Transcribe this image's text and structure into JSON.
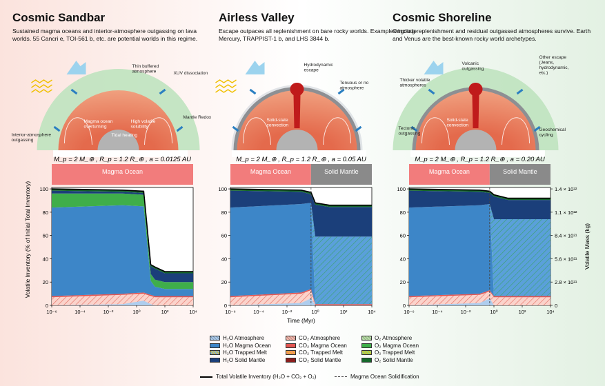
{
  "panels": [
    {
      "title": "Cosmic Sandbar",
      "description": "Sustained magma oceans and interior-atmosphere outgassing on lava worlds. 55 Cancri e, TOI-561 b, etc. are potential worlds in this regime.",
      "params": "M_p = 2 M_⊕ , R_p = 1.2 R_⊕ , a = 0.0125 AU",
      "band_left": "Magma Ocean",
      "band_right": "",
      "labels": [
        "Thin buffered atmosphere",
        "XUV dissociation",
        "Mantle Redox",
        "Interior-atmosphere outgassing",
        "Magma ocean overturning",
        "High volatile solubility",
        "Tidal heating"
      ]
    },
    {
      "title": "Airless Valley",
      "description": "Escape outpaces all replenishment on bare rocky worlds. Examples include Mercury, TRAPPIST-1 b, and LHS 3844 b.",
      "params": "M_p = 2 M_⊕ , R_p = 1.2 R_⊕ , a = 0.05 AU",
      "band_left": "Magma Ocean",
      "band_right": "Solid Mantle",
      "labels": [
        "Hydrodynamic escape",
        "Tenuous or no atmosphere",
        "Solid-state convection"
      ]
    },
    {
      "title": "Cosmic Shoreline",
      "description": "Ongoing replenishment and residual outgassed atmospheres survive. Earth and Venus are the best-known rocky world archetypes.",
      "params": "M_p = 2 M_⊕ , R_p = 1.2 R_⊕ , a = 0.20 AU",
      "band_left": "Magma Ocean",
      "band_right": "Solid Mantle",
      "labels": [
        "Volcanic outgassing",
        "Other escape (Jeans, hydrodynamic, etc.)",
        "Thicker volatile atmospheres",
        "Solid-state convection",
        "Tectonic outgassing",
        "Geochemical cycling"
      ]
    }
  ],
  "axes": {
    "ylabel_left": "Volatile Inventory (% of Initial Total Inventory)",
    "ylabel_right": "Volatile Mass (kg)",
    "xlabel": "Time (Myr)",
    "yticks": [
      "0",
      "20",
      "40",
      "60",
      "80",
      "100"
    ],
    "xticks": [
      "10⁻⁶",
      "10⁻⁴",
      "10⁻²",
      "10⁰",
      "10²",
      "10⁴"
    ],
    "right_ticks": [
      "0",
      "2.8 × 10²¹",
      "5.6 × 10²¹",
      "8.4 × 10²¹",
      "1.1 × 10²²",
      "1.4 × 10²²"
    ]
  },
  "chart_data": [
    {
      "type": "area",
      "x_log10": [
        -6,
        -1,
        0.5,
        1,
        1.3,
        2,
        4
      ],
      "series": [
        {
          "name": "H₂O Atmosphere",
          "values": [
            0,
            1,
            4,
            1,
            0,
            0,
            0
          ]
        },
        {
          "name": "H₂O Magma Ocean",
          "values": [
            76,
            76,
            74,
            12,
            8,
            6,
            6
          ]
        },
        {
          "name": "CO₂ Atmosphere",
          "values": [
            7,
            9,
            10,
            8,
            7,
            7,
            7
          ]
        },
        {
          "name": "O₂ Magma Ocean",
          "values": [
            12,
            11,
            10,
            6,
            6,
            6,
            6
          ]
        },
        {
          "name": "Total Volatile Inventory (H₂O + CO₂ + O₂)",
          "values": [
            100,
            99,
            98,
            35,
            33,
            29,
            29
          ]
        }
      ]
    },
    {
      "type": "area",
      "x_log10": [
        -6,
        -1,
        -0.3,
        0,
        1,
        4
      ],
      "series": [
        {
          "name": "H₂O Atmosphere",
          "values": [
            0,
            2,
            6,
            0,
            0,
            0
          ]
        },
        {
          "name": "H₂O Magma Ocean",
          "values": [
            76,
            76,
            74,
            0,
            0,
            0
          ]
        },
        {
          "name": "H₂O Solid Mantle",
          "values": [
            0,
            0,
            0,
            58,
            58,
            58
          ]
        },
        {
          "name": "CO₂ Atmosphere",
          "values": [
            7,
            10,
            13,
            0,
            0,
            0
          ]
        },
        {
          "name": "Total Volatile Inventory (H₂O + CO₂ + O₂)",
          "values": [
            100,
            99,
            97,
            88,
            86,
            86
          ]
        }
      ]
    },
    {
      "type": "area",
      "x_log10": [
        -6,
        -1,
        -0.3,
        0,
        1,
        4
      ],
      "series": [
        {
          "name": "H₂O Atmosphere",
          "values": [
            0,
            2,
            6,
            0,
            0,
            0
          ]
        },
        {
          "name": "H₂O Magma Ocean",
          "values": [
            76,
            76,
            74,
            0,
            0,
            0
          ]
        },
        {
          "name": "H₂O Solid Mantle",
          "values": [
            0,
            0,
            0,
            66,
            66,
            66
          ]
        },
        {
          "name": "CO₂ Atmosphere",
          "values": [
            7,
            9,
            12,
            7,
            7,
            7
          ]
        },
        {
          "name": "Total Volatile Inventory (H₂O + CO₂ + O₂)",
          "values": [
            100,
            99,
            98,
            95,
            92,
            92
          ]
        }
      ]
    }
  ],
  "legend": [
    [
      "H₂O Atmosphere",
      "CO₂ Atmosphere",
      "O₂ Atmosphere"
    ],
    [
      "H₂O Magma Ocean",
      "CO₂ Magma Ocean",
      "O₂ Magma Ocean"
    ],
    [
      "H₂O Trapped Melt",
      "CO₂ Trapped Melt",
      "O₂ Trapped Melt"
    ],
    [
      "H₂O Solid Mantle",
      "CO₂ Solid Mantle",
      "O₂ Solid Mantle"
    ]
  ],
  "legend_bottom": {
    "total": "Total Volatile Inventory (H₂O + CO₂ + O₂)",
    "solidification": "Magma Ocean Solidification"
  },
  "colors": {
    "h2o_atm": "#aecdee",
    "h2o_mo": "#3d86c8",
    "h2o_tm": "#7fb0e0",
    "h2o_sm": "#1b3f7a",
    "co2_atm": "#f6b8ad",
    "co2_mo": "#e25552",
    "co2_tm": "#f08a7a",
    "co2_sm": "#8c1d1d",
    "o2_atm": "#b9e0a8",
    "o2_mo": "#3fae4a",
    "o2_tm": "#8dd07a",
    "o2_sm": "#15682a"
  }
}
